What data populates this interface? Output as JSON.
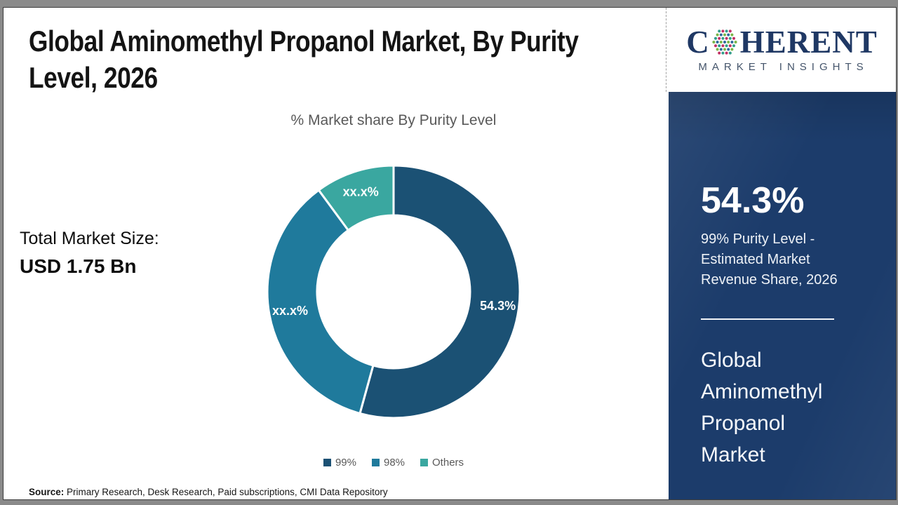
{
  "header": {
    "title_line1": "Global Aminomethyl Propanol Market, By Purity",
    "title_line2": "Level, 2026"
  },
  "logo": {
    "brand_prefix": "C",
    "brand_suffix": "HERENT",
    "tagline": "MARKET INSIGHTS",
    "brand_color": "#1f3864",
    "dot_globe_colors": [
      "#2f9d8a",
      "#7ab648",
      "#c22f63",
      "#2d6a9b"
    ]
  },
  "chart_data": {
    "type": "pie",
    "subtype": "donut",
    "title": "% Market share By Purity Level",
    "categories": [
      "99%",
      "98%",
      "Others"
    ],
    "values": [
      54.3,
      35.6,
      10.1
    ],
    "slice_labels": [
      "54.3%",
      "xx.x%",
      "xx.x%"
    ],
    "colors": [
      "#1b5174",
      "#1f7a9c",
      "#3aa7a0"
    ],
    "start_angle_deg": 0,
    "direction": "clockwise",
    "legend_position": "bottom",
    "label_color": "#ffffff",
    "separator_color": "#ffffff"
  },
  "market_size": {
    "label": "Total Market Size:",
    "value": "USD 1.75 Bn"
  },
  "sidebar": {
    "stat_value": "54.3%",
    "stat_caption": "99% Purity Level -\nEstimated Market\nRevenue Share, 2026",
    "report_name": "Global\nAminomethyl\nPropanol\nMarket",
    "background_color": "#1c3c6b"
  },
  "source": {
    "label": "Source:",
    "text": " Primary Research, Desk Research, Paid subscriptions, CMI Data Repository"
  }
}
